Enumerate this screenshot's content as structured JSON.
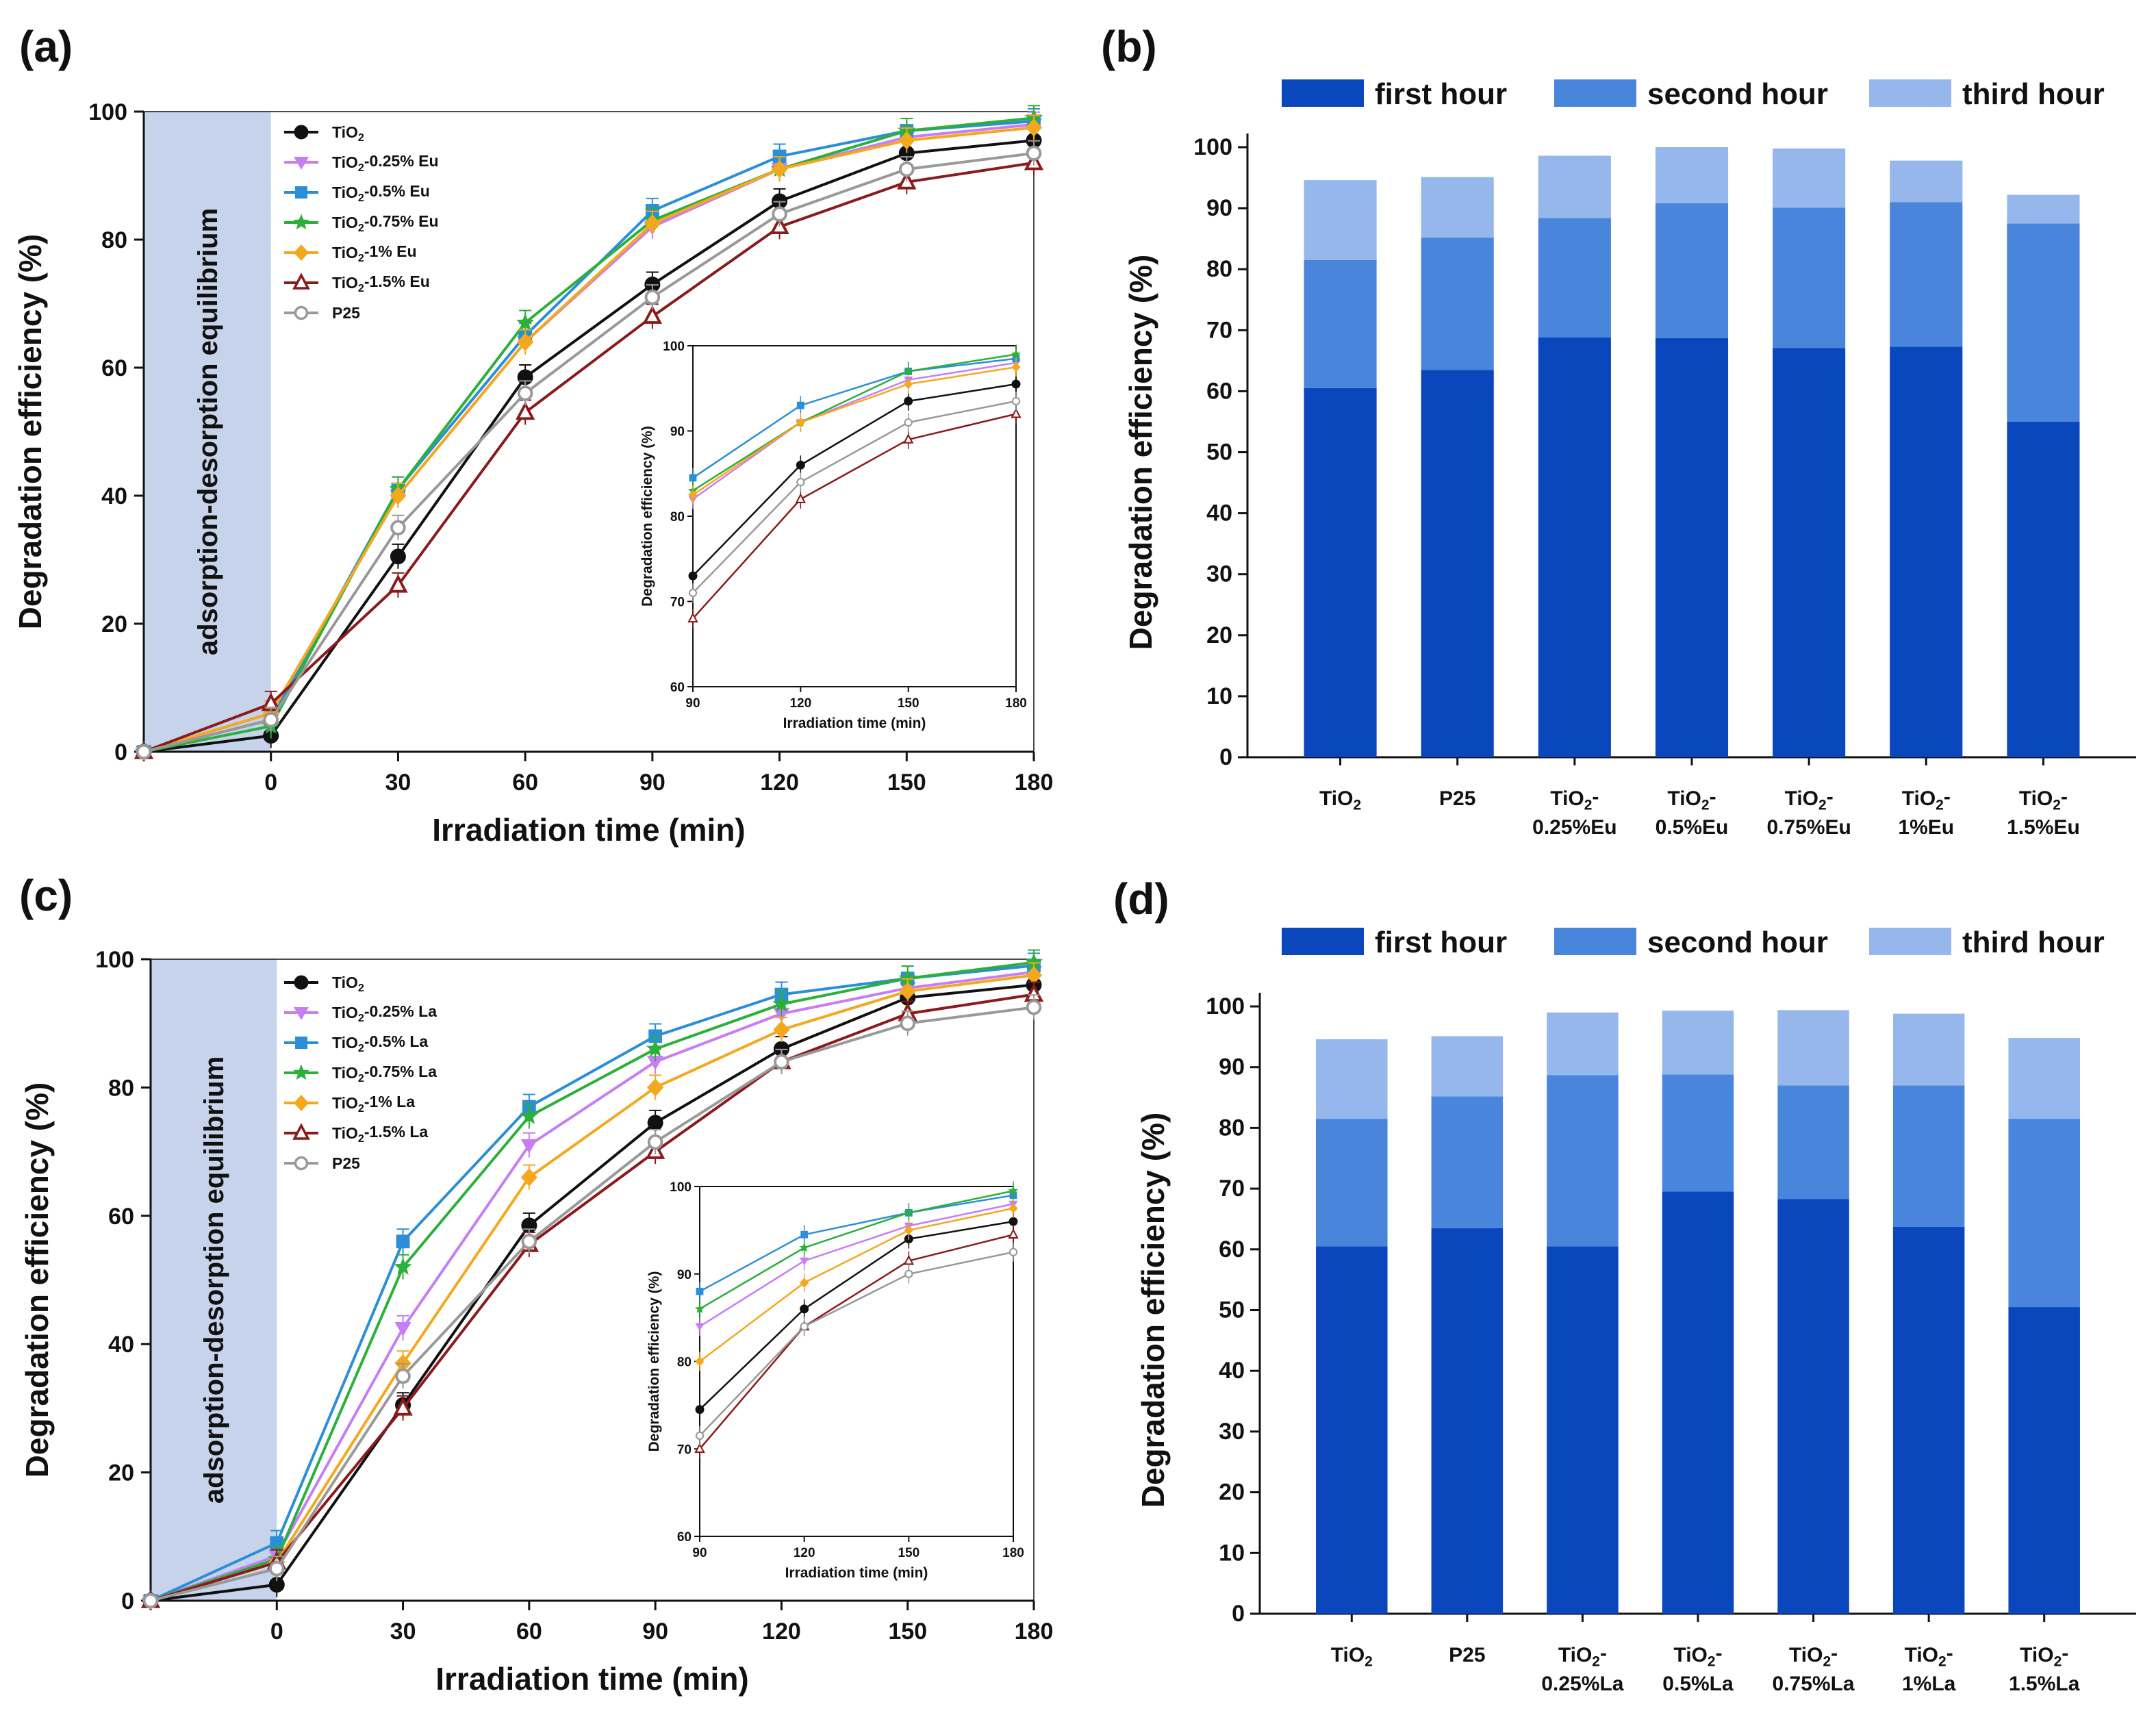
{
  "chart_data": [
    {
      "panel": "(a)",
      "type": "line",
      "xlabel": "Irradiation time (min)",
      "ylabel": "Degradation efficiency (%)",
      "annotation": "adsorption-desorption equilibrium",
      "x": [
        -30,
        0,
        30,
        60,
        90,
        120,
        150,
        180
      ],
      "x_ticklabels": [
        "0",
        "30",
        "60",
        "90",
        "120",
        "150",
        "180"
      ],
      "xlim": [
        -30,
        180
      ],
      "ylim": [
        0,
        100
      ],
      "y_ticks": [
        0,
        20,
        40,
        60,
        80,
        100
      ],
      "series": [
        {
          "name": "TiO2",
          "sub": "2",
          "base": "TiO",
          "suffix": "",
          "color": "#111111",
          "marker": "circle",
          "values": [
            0,
            2.5,
            30.5,
            58.5,
            73,
            86,
            93.5,
            95.5
          ]
        },
        {
          "name": "TiO2-0.25% Eu",
          "base": "TiO",
          "sub": "2",
          "suffix": "-0.25% Eu",
          "color": "#c77df3",
          "marker": "triangle-down",
          "values": [
            0,
            6,
            40,
            64,
            82,
            91,
            96,
            98
          ]
        },
        {
          "name": "TiO2-0.5% Eu",
          "base": "TiO",
          "sub": "2",
          "suffix": "-0.5% Eu",
          "color": "#2a8fd8",
          "marker": "square",
          "values": [
            0,
            5,
            41,
            65,
            84.5,
            93,
            97,
            98.5
          ]
        },
        {
          "name": "TiO2-0.75% Eu",
          "base": "TiO",
          "sub": "2",
          "suffix": "-0.75% Eu",
          "color": "#2bb03a",
          "marker": "star",
          "values": [
            0,
            4,
            41,
            67,
            83,
            91,
            97,
            99
          ]
        },
        {
          "name": "TiO2-1% Eu",
          "base": "TiO",
          "sub": "2",
          "suffix": "-1% Eu",
          "color": "#f4a81d",
          "marker": "diamond",
          "values": [
            0,
            6,
            40,
            64,
            82.5,
            91,
            95.5,
            97.5
          ]
        },
        {
          "name": "TiO2-1.5% Eu",
          "base": "TiO",
          "sub": "2",
          "suffix": "-1.5% Eu",
          "color": "#8b1a1a",
          "marker": "triangle-up-open",
          "values": [
            0,
            7.5,
            26,
            53,
            68,
            82,
            89,
            92
          ]
        },
        {
          "name": "P25",
          "base": "P25",
          "sub": "",
          "suffix": "",
          "color": "#999999",
          "marker": "circle-open",
          "values": [
            0,
            5,
            35,
            56,
            71,
            84,
            91,
            93.5
          ]
        }
      ],
      "inset": {
        "xlabel": "Irradiation time (min)",
        "ylabel": "Degradation efficiency (%)",
        "x_ticklabels": [
          "90",
          "120",
          "150",
          "180"
        ],
        "y_ticklabels": [
          "60",
          "70",
          "80",
          "90",
          "100"
        ],
        "xlim": [
          90,
          180
        ],
        "ylim": [
          60,
          100
        ]
      }
    },
    {
      "panel": "(b)",
      "type": "bar",
      "stacked": true,
      "ylabel": "Degradation efficiency (%)",
      "ylim": [
        0,
        100
      ],
      "y_ticks": [
        0,
        10,
        20,
        30,
        40,
        50,
        60,
        70,
        80,
        90,
        100
      ],
      "legend": [
        "first hour",
        "second hour",
        "third hour"
      ],
      "colors": [
        "#0a47bd",
        "#4a85dc",
        "#95b7ec"
      ],
      "categories": [
        {
          "l1": "TiO",
          "sub": "2",
          "l1b": "",
          "l2": ""
        },
        {
          "l1": "P25",
          "sub": "",
          "l1b": "",
          "l2": ""
        },
        {
          "l1": "TiO",
          "sub": "2",
          "l1b": "-",
          "l2": "0.25%Eu"
        },
        {
          "l1": "TiO",
          "sub": "2",
          "l1b": "-",
          "l2": "0.5%Eu"
        },
        {
          "l1": "TiO",
          "sub": "2",
          "l1b": "-",
          "l2": "0.75%Eu"
        },
        {
          "l1": "TiO",
          "sub": "2",
          "l1b": "-",
          "l2": "1%Eu"
        },
        {
          "l1": "TiO",
          "sub": "2",
          "l1b": "-",
          "l2": "1.5%Eu"
        }
      ],
      "series": [
        {
          "name": "first hour",
          "values": [
            60.5,
            63.5,
            68.8,
            68.7,
            67.1,
            67.3,
            55
          ]
        },
        {
          "name": "second hour",
          "values": [
            21,
            21.7,
            19.6,
            22.1,
            23,
            23.7,
            32.5
          ]
        },
        {
          "name": "third hour",
          "values": [
            13.1,
            9.9,
            10.2,
            9.2,
            9.7,
            6.8,
            4.7
          ]
        }
      ]
    },
    {
      "panel": "(c)",
      "type": "line",
      "xlabel": "Irradiation time (min)",
      "ylabel": "Degradation efficiency (%)",
      "annotation": "adsorption-desorption equilibrium",
      "x": [
        -30,
        0,
        30,
        60,
        90,
        120,
        150,
        180
      ],
      "x_ticklabels": [
        "0",
        "30",
        "60",
        "90",
        "120",
        "150",
        "180"
      ],
      "xlim": [
        -30,
        180
      ],
      "ylim": [
        0,
        100
      ],
      "y_ticks": [
        0,
        20,
        40,
        60,
        80,
        100
      ],
      "series": [
        {
          "name": "TiO2",
          "base": "TiO",
          "sub": "2",
          "suffix": "",
          "color": "#111111",
          "marker": "circle",
          "values": [
            0,
            2.5,
            30.5,
            58.5,
            74.5,
            86,
            94,
            96
          ]
        },
        {
          "name": "TiO2-0.25% La",
          "base": "TiO",
          "sub": "2",
          "suffix": "-0.25% La",
          "color": "#c77df3",
          "marker": "triangle-down",
          "values": [
            0,
            7,
            42.5,
            71,
            84,
            91.5,
            95.5,
            98
          ]
        },
        {
          "name": "TiO2-0.5% La",
          "base": "TiO",
          "sub": "2",
          "suffix": "-0.5% La",
          "color": "#2a8fd8",
          "marker": "square",
          "values": [
            0,
            9,
            56,
            77,
            88,
            94.5,
            97,
            99
          ]
        },
        {
          "name": "TiO2-0.75% La",
          "base": "TiO",
          "sub": "2",
          "suffix": "-0.75% La",
          "color": "#2bb03a",
          "marker": "star",
          "values": [
            0,
            6.5,
            52,
            75.5,
            86,
            93,
            97,
            99.5
          ]
        },
        {
          "name": "TiO2-1% La",
          "base": "TiO",
          "sub": "2",
          "suffix": "-1% La",
          "color": "#f4a81d",
          "marker": "diamond",
          "values": [
            0,
            6,
            37,
            66,
            80,
            89,
            95,
            97.5
          ]
        },
        {
          "name": "TiO2-1.5% La",
          "base": "TiO",
          "sub": "2",
          "suffix": "-1.5% La",
          "color": "#8b1a1a",
          "marker": "triangle-up-open",
          "values": [
            0,
            6,
            30,
            55.5,
            70,
            84,
            91.5,
            94.5
          ]
        },
        {
          "name": "P25",
          "base": "P25",
          "sub": "",
          "suffix": "",
          "color": "#999999",
          "marker": "circle-open",
          "values": [
            0,
            5,
            35,
            56,
            71.5,
            84,
            90,
            92.5
          ]
        }
      ],
      "inset": {
        "xlabel": "Irradiation time (min)",
        "ylabel": "Degradation efficiency (%)",
        "x_ticklabels": [
          "90",
          "120",
          "150",
          "180"
        ],
        "y_ticklabels": [
          "60",
          "70",
          "80",
          "90",
          "100"
        ],
        "xlim": [
          90,
          180
        ],
        "ylim": [
          60,
          100
        ]
      }
    },
    {
      "panel": "(d)",
      "type": "bar",
      "stacked": true,
      "ylabel": "Degradation efficiency (%)",
      "ylim": [
        0,
        100
      ],
      "y_ticks": [
        0,
        10,
        20,
        30,
        40,
        50,
        60,
        70,
        80,
        90,
        100
      ],
      "legend": [
        "first hour",
        "second hour",
        "third hour"
      ],
      "colors": [
        "#0a47bd",
        "#4a85dc",
        "#95b7ec"
      ],
      "categories": [
        {
          "l1": "TiO",
          "sub": "2",
          "l1b": "",
          "l2": ""
        },
        {
          "l1": "P25",
          "sub": "",
          "l1b": "",
          "l2": ""
        },
        {
          "l1": "TiO",
          "sub": "2",
          "l1b": "-",
          "l2": "0.25%La"
        },
        {
          "l1": "TiO",
          "sub": "2",
          "l1b": "-",
          "l2": "0.5%La"
        },
        {
          "l1": "TiO",
          "sub": "2",
          "l1b": "-",
          "l2": "0.75%La"
        },
        {
          "l1": "TiO",
          "sub": "2",
          "l1b": "-",
          "l2": "1%La"
        },
        {
          "l1": "TiO",
          "sub": "2",
          "l1b": "-",
          "l2": "1.5%La"
        }
      ],
      "series": [
        {
          "name": "first hour",
          "values": [
            60.5,
            63.5,
            60.5,
            69.5,
            68.3,
            63.7,
            50.5
          ]
        },
        {
          "name": "second hour",
          "values": [
            21,
            21.7,
            28.2,
            19.3,
            18.7,
            23.3,
            31
          ]
        },
        {
          "name": "third hour",
          "values": [
            13.1,
            9.9,
            10.3,
            10.5,
            12.4,
            11.8,
            13.3
          ]
        }
      ]
    }
  ]
}
